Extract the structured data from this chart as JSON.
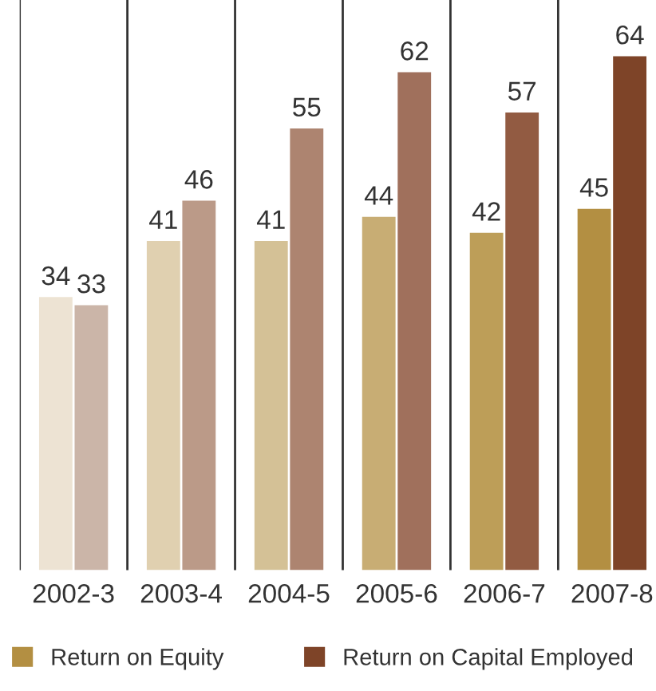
{
  "chart_data": {
    "type": "bar",
    "categories": [
      "2002-3",
      "2003-4",
      "2004-5",
      "2005-6",
      "2006-7",
      "2007-8"
    ],
    "series": [
      {
        "name": "Return on Equity",
        "color": "#b38f42",
        "colors": [
          "#ede3d3",
          "#e0d0b0",
          "#d4c196",
          "#c8ad74",
          "#bd9e58",
          "#b38f42"
        ],
        "values": [
          34,
          41,
          41,
          44,
          42,
          45
        ]
      },
      {
        "name": "Return on Capital Employed",
        "color": "#7e4428",
        "colors": [
          "#cbb5a8",
          "#bb9a88",
          "#ad8470",
          "#a0705c",
          "#925b42",
          "#7e4428"
        ],
        "values": [
          33,
          46,
          55,
          62,
          57,
          64
        ]
      }
    ],
    "ylim": [
      0,
      71
    ],
    "data_labels": true,
    "grid": "x",
    "legend": "bottom",
    "tick_labels": "x"
  }
}
